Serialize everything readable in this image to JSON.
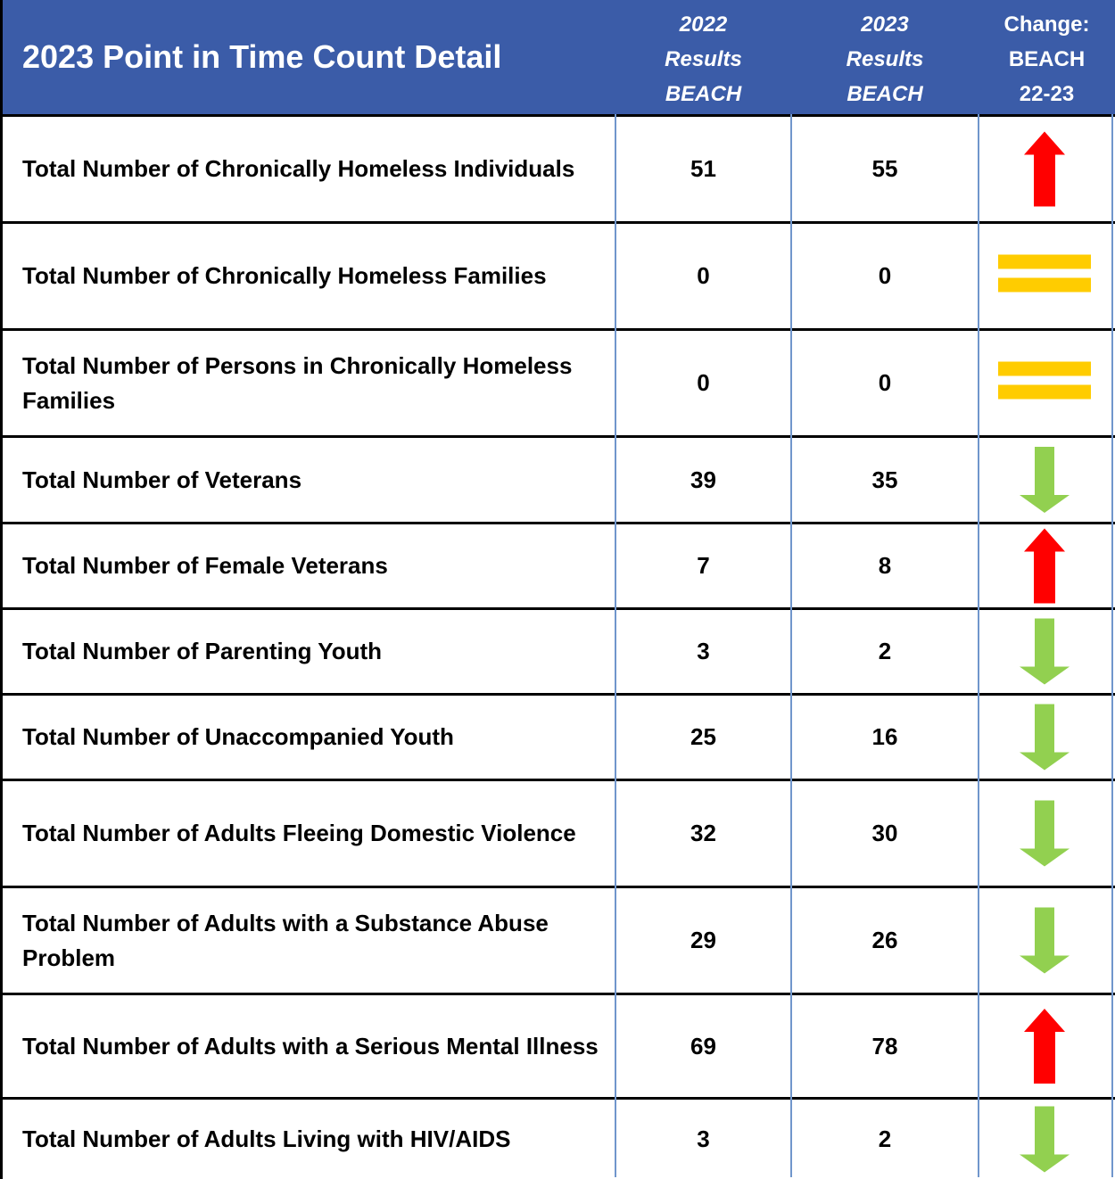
{
  "header": {
    "title": "2023 Point in Time Count Detail",
    "columns": [
      [
        "2022",
        "Results",
        "BEACH"
      ],
      [
        "2023",
        "Results",
        "BEACH"
      ],
      [
        "Change:",
        "BEACH",
        "22-23"
      ]
    ]
  },
  "table": {
    "rows": [
      [
        "Total Number of Chronically Homeless Individuals",
        51,
        55
      ],
      [
        "Total Number of Chronically Homeless Families",
        0,
        0
      ],
      [
        "Total Number of Persons in Chronically Homeless Families",
        0,
        0
      ],
      [
        "Total Number of Veterans",
        39,
        35
      ],
      [
        "Total Number of Female Veterans",
        7,
        8
      ],
      [
        "Total Number of Parenting Youth",
        3,
        2
      ],
      [
        "Total Number of Unaccompanied Youth",
        25,
        16
      ],
      [
        "Total Number of Adults Fleeing Domestic Violence",
        32,
        30
      ],
      [
        "Total Number of Adults with a Substance Abuse Problem",
        29,
        26
      ],
      [
        "Total Number of Adults with a Serious Mental Illness",
        69,
        78
      ],
      [
        "Total Number of Adults Living with HIV/AIDS",
        3,
        2
      ]
    ]
  }
}
